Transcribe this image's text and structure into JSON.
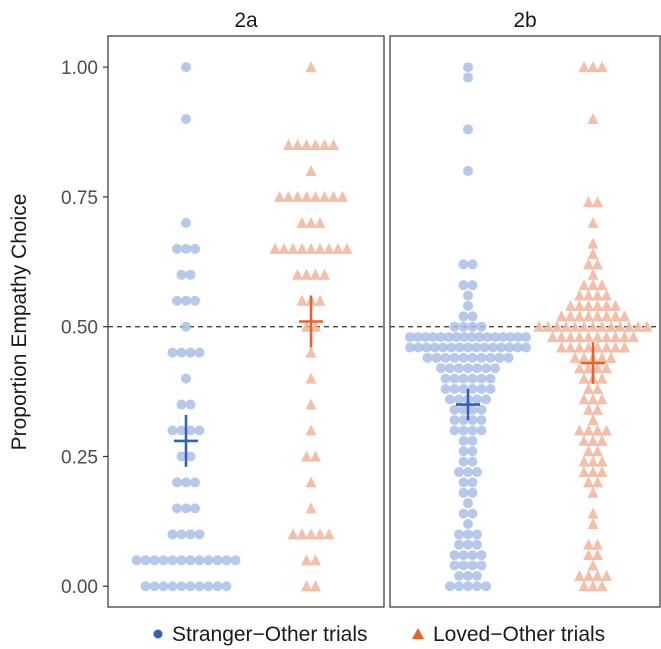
{
  "chart_data": {
    "type": "scatter",
    "ylabel": "Proportion Empathy Choice",
    "ylim": [
      -0.04,
      1.06
    ],
    "yticks": [
      0.0,
      0.25,
      0.5,
      0.75,
      1.0
    ],
    "ytick_labels": [
      "0.00",
      "0.25",
      "0.50",
      "0.75",
      "1.00"
    ],
    "reference_line": 0.5,
    "grid": false,
    "legend_position": "bottom",
    "colors": {
      "stranger": "#3461b8",
      "stranger_point": "#a9c0e6",
      "loved": "#e8622c",
      "loved_point": "#f2b49a"
    },
    "panels": [
      {
        "label": "2a",
        "series": [
          {
            "name": "Stranger-Other trials",
            "marker": "circle",
            "mean": 0.28,
            "ci": [
              0.23,
              0.33
            ],
            "values": [
              1.0,
              0.9,
              0.7,
              0.65,
              0.65,
              0.65,
              0.6,
              0.6,
              0.55,
              0.55,
              0.55,
              0.5,
              0.45,
              0.45,
              0.45,
              0.45,
              0.4,
              0.35,
              0.35,
              0.3,
              0.3,
              0.3,
              0.3,
              0.25,
              0.25,
              0.2,
              0.2,
              0.2,
              0.15,
              0.15,
              0.15,
              0.1,
              0.1,
              0.1,
              0.1,
              0.05,
              0.05,
              0.05,
              0.05,
              0.05,
              0.05,
              0.05,
              0.05,
              0.05,
              0.05,
              0.05,
              0.05,
              0.0,
              0.0,
              0.0,
              0.0,
              0.0,
              0.0,
              0.0,
              0.0,
              0.0,
              0.0
            ]
          },
          {
            "name": "Loved-Other trials",
            "marker": "triangle",
            "mean": 0.51,
            "ci": [
              0.46,
              0.56
            ],
            "values": [
              1.0,
              0.85,
              0.85,
              0.85,
              0.85,
              0.85,
              0.85,
              0.8,
              0.75,
              0.75,
              0.75,
              0.75,
              0.75,
              0.75,
              0.75,
              0.75,
              0.7,
              0.7,
              0.7,
              0.65,
              0.65,
              0.65,
              0.65,
              0.65,
              0.65,
              0.65,
              0.65,
              0.65,
              0.6,
              0.6,
              0.6,
              0.6,
              0.55,
              0.55,
              0.55,
              0.5,
              0.5,
              0.45,
              0.4,
              0.35,
              0.3,
              0.25,
              0.25,
              0.2,
              0.15,
              0.1,
              0.1,
              0.1,
              0.1,
              0.1,
              0.05,
              0.05,
              0.0,
              0.0
            ]
          }
        ]
      },
      {
        "label": "2b",
        "series": [
          {
            "name": "Stranger-Other trials",
            "marker": "circle",
            "mean": 0.35,
            "ci": [
              0.32,
              0.38
            ],
            "values": [
              1.0,
              0.98,
              0.88,
              0.8,
              0.62,
              0.62,
              0.58,
              0.58,
              0.56,
              0.54,
              0.52,
              0.52,
              0.5,
              0.5,
              0.5,
              0.5,
              0.48,
              0.48,
              0.48,
              0.48,
              0.48,
              0.48,
              0.48,
              0.48,
              0.48,
              0.48,
              0.48,
              0.48,
              0.48,
              0.48,
              0.48,
              0.48,
              0.46,
              0.46,
              0.46,
              0.46,
              0.46,
              0.46,
              0.46,
              0.46,
              0.46,
              0.46,
              0.46,
              0.46,
              0.46,
              0.46,
              0.46,
              0.44,
              0.44,
              0.44,
              0.44,
              0.44,
              0.44,
              0.44,
              0.44,
              0.44,
              0.44,
              0.42,
              0.42,
              0.42,
              0.42,
              0.42,
              0.42,
              0.42,
              0.4,
              0.4,
              0.4,
              0.4,
              0.4,
              0.4,
              0.38,
              0.38,
              0.38,
              0.38,
              0.38,
              0.38,
              0.36,
              0.36,
              0.36,
              0.36,
              0.36,
              0.34,
              0.34,
              0.34,
              0.34,
              0.32,
              0.32,
              0.32,
              0.32,
              0.3,
              0.3,
              0.3,
              0.3,
              0.28,
              0.28,
              0.26,
              0.26,
              0.24,
              0.24,
              0.22,
              0.22,
              0.22,
              0.2,
              0.2,
              0.18,
              0.18,
              0.16,
              0.14,
              0.14,
              0.12,
              0.1,
              0.1,
              0.1,
              0.08,
              0.08,
              0.08,
              0.06,
              0.06,
              0.06,
              0.06,
              0.04,
              0.04,
              0.04,
              0.04,
              0.02,
              0.02,
              0.02,
              0.0,
              0.0,
              0.0,
              0.0,
              0.0
            ]
          },
          {
            "name": "Loved-Other trials",
            "marker": "triangle",
            "mean": 0.43,
            "ci": [
              0.39,
              0.47
            ],
            "values": [
              1.0,
              1.0,
              1.0,
              0.9,
              0.74,
              0.74,
              0.7,
              0.66,
              0.64,
              0.62,
              0.62,
              0.6,
              0.58,
              0.58,
              0.58,
              0.56,
              0.56,
              0.56,
              0.56,
              0.54,
              0.54,
              0.54,
              0.54,
              0.54,
              0.54,
              0.52,
              0.52,
              0.52,
              0.52,
              0.52,
              0.52,
              0.52,
              0.52,
              0.5,
              0.5,
              0.5,
              0.5,
              0.5,
              0.5,
              0.5,
              0.5,
              0.5,
              0.5,
              0.5,
              0.5,
              0.5,
              0.48,
              0.48,
              0.48,
              0.48,
              0.48,
              0.48,
              0.48,
              0.48,
              0.48,
              0.48,
              0.46,
              0.46,
              0.46,
              0.46,
              0.46,
              0.46,
              0.46,
              0.46,
              0.44,
              0.44,
              0.44,
              0.44,
              0.44,
              0.42,
              0.42,
              0.42,
              0.42,
              0.4,
              0.4,
              0.4,
              0.38,
              0.38,
              0.36,
              0.36,
              0.36,
              0.34,
              0.34,
              0.32,
              0.3,
              0.3,
              0.3,
              0.3,
              0.28,
              0.28,
              0.28,
              0.26,
              0.26,
              0.24,
              0.24,
              0.24,
              0.22,
              0.22,
              0.22,
              0.2,
              0.2,
              0.18,
              0.14,
              0.12,
              0.08,
              0.08,
              0.06,
              0.06,
              0.04,
              0.02,
              0.02,
              0.02,
              0.02,
              0.0,
              0.0,
              0.0
            ]
          }
        ]
      }
    ],
    "legend": [
      {
        "label": "Stranger−Other trials",
        "marker": "circle"
      },
      {
        "label": "Loved−Other trials",
        "marker": "triangle"
      }
    ]
  }
}
